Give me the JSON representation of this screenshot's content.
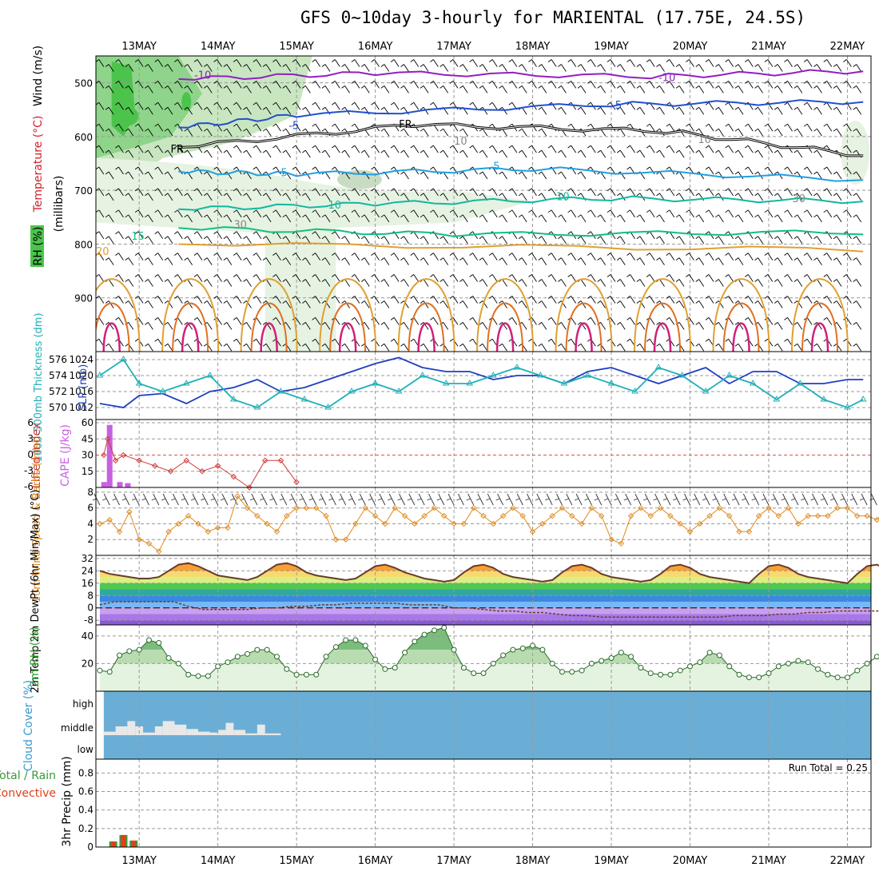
{
  "title": "GFS 0~10day 3-hourly for MARIENTAL (17.75E, 24.5S)",
  "dates": [
    "13MAY",
    "14MAY",
    "15MAY",
    "16MAY",
    "17MAY",
    "18MAY",
    "19MAY",
    "20MAY",
    "21MAY",
    "22MAY"
  ],
  "colors": {
    "temp": "#d4202a",
    "wind_blue": "#1f4fbf",
    "rh_green": "#2aa02a",
    "thickness": "#20b0b8",
    "slp": "#1f3fc0",
    "cape": "#c860e0",
    "li": "#d23a3a",
    "wind10": "#e08a20",
    "cloud_bg": "#6aaed6",
    "precip_total": "#3a9a3a",
    "precip_conv": "#e0401a"
  },
  "chart_data": [
    {
      "type": "contour",
      "id": "upper-air",
      "ylabel_parts": [
        "RH (%)",
        "Temperature (°C)",
        "Wind (m/s)"
      ],
      "ylabel_units": "(millibars)",
      "y_ticks": [
        500,
        600,
        700,
        800,
        900
      ],
      "ylim": [
        1000,
        450
      ],
      "contours": [
        {
          "label": "-10",
          "values_at_days": [
            {
              "day": 13.5,
              "p": 493
            },
            {
              "day": 16.0,
              "p": 482
            },
            {
              "day": 19.5,
              "p": 488
            },
            {
              "day": 22.2,
              "p": 478
            }
          ]
        },
        {
          "label": "-5",
          "values_at_days": [
            {
              "day": 13.5,
              "p": 583
            },
            {
              "day": 15.0,
              "p": 560
            },
            {
              "day": 19.0,
              "p": 540
            },
            {
              "day": 22.2,
              "p": 535
            }
          ]
        },
        {
          "label": "FR",
          "values_at_days": [
            {
              "day": 13.5,
              "p": 620
            },
            {
              "day": 16.5,
              "p": 578
            },
            {
              "day": 19.7,
              "p": 590
            },
            {
              "day": 22.2,
              "p": 635
            }
          ]
        },
        {
          "label": "5",
          "values_at_days": [
            {
              "day": 13.5,
              "p": 665
            },
            {
              "day": 15.0,
              "p": 670
            },
            {
              "day": 18.0,
              "p": 660
            },
            {
              "day": 22.2,
              "p": 680
            }
          ]
        },
        {
          "label": "10",
          "values_at_days": [
            {
              "day": 13.5,
              "p": 735
            },
            {
              "day": 16.0,
              "p": 725
            },
            {
              "day": 19.0,
              "p": 715
            },
            {
              "day": 22.2,
              "p": 720
            }
          ]
        },
        {
          "label": "15",
          "values_at_days": [
            {
              "day": 13.5,
              "p": 770
            },
            {
              "day": 17.0,
              "p": 782
            },
            {
              "day": 22.2,
              "p": 778
            }
          ]
        },
        {
          "label": "20",
          "values_at_days": [
            {
              "day": 13.5,
              "p": 800
            },
            {
              "day": 22.2,
              "p": 810
            }
          ]
        }
      ],
      "contour_labels": [
        "-10",
        "-10",
        "-5",
        "-5",
        "FR",
        "FR",
        "5",
        "5",
        "10",
        "10",
        "15",
        "20",
        "30",
        "10",
        "10",
        "30"
      ]
    },
    {
      "type": "line",
      "id": "slp-thickness",
      "ylabel_left": "1000-500mb Thickness (dm)",
      "ylabel_right": "SLP (mb)",
      "left_ticks": [
        570,
        572,
        574,
        576
      ],
      "right_ticks": [
        1012,
        1016,
        1020,
        1024
      ],
      "series": [
        {
          "name": "SLP",
          "axis": "right",
          "x": [
            12.5,
            12.8,
            13.0,
            13.3,
            13.6,
            13.9,
            14.2,
            14.5,
            14.8,
            15.1,
            15.4,
            15.7,
            16.0,
            16.3,
            16.6,
            16.9,
            17.2,
            17.5,
            17.8,
            18.1,
            18.4,
            18.7,
            19.0,
            19.3,
            19.6,
            19.9,
            20.2,
            20.5,
            20.8,
            21.1,
            21.4,
            21.7,
            22.0,
            22.2
          ],
          "values": [
            1013,
            1012,
            1015,
            1015.5,
            1013,
            1016,
            1017,
            1019,
            1016,
            1017,
            1019,
            1021,
            1023,
            1024.5,
            1022,
            1021,
            1021,
            1019,
            1020,
            1020,
            1018,
            1021,
            1022,
            1020,
            1018,
            1020,
            1022,
            1018,
            1021,
            1021,
            1018,
            1018,
            1019,
            1019
          ]
        },
        {
          "name": "Thickness",
          "axis": "left",
          "x": [
            12.5,
            12.8,
            13.0,
            13.3,
            13.6,
            13.9,
            14.2,
            14.5,
            14.8,
            15.1,
            15.4,
            15.7,
            16.0,
            16.3,
            16.6,
            16.9,
            17.2,
            17.5,
            17.8,
            18.1,
            18.4,
            18.7,
            19.0,
            19.3,
            19.6,
            19.9,
            20.2,
            20.5,
            20.8,
            21.1,
            21.4,
            21.7,
            22.0,
            22.2
          ],
          "values": [
            574,
            576,
            573,
            572,
            573,
            574,
            571,
            570,
            572,
            571,
            570,
            572,
            573,
            572,
            574,
            573,
            573,
            574,
            575,
            574,
            573,
            574,
            573,
            572,
            575,
            574,
            572,
            574,
            573,
            571,
            573,
            571,
            570,
            571
          ]
        }
      ]
    },
    {
      "type": "bar-line",
      "id": "cape-li",
      "ylabel_left": "Lifted Index",
      "ylabel_right": "CAPE (J/kg)",
      "left_ticks": [
        "6",
        "3",
        "0",
        "-3",
        "-6"
      ],
      "right_ticks": [
        15,
        30,
        45,
        60
      ],
      "cape_bars": [
        {
          "day": 12.55,
          "value": 5
        },
        {
          "day": 12.62,
          "value": 58
        },
        {
          "day": 12.75,
          "value": 5
        },
        {
          "day": 12.85,
          "value": 4
        }
      ],
      "lifted_index": {
        "x": [
          12.55,
          12.6,
          12.7,
          12.8,
          13.0,
          13.2,
          13.4,
          13.6,
          13.8,
          14.0,
          14.2,
          14.4,
          14.6,
          14.8,
          15.0
        ],
        "values": [
          0,
          -3,
          1,
          0,
          1,
          2,
          3,
          1,
          3,
          2,
          4,
          6,
          1,
          1,
          5
        ]
      }
    },
    {
      "type": "line",
      "id": "wind10",
      "ylabel": "10m Wind Speed & Barbs (m/s)",
      "y_ticks": [
        2,
        4,
        6,
        8
      ],
      "ylim": [
        0,
        8.5
      ],
      "x_start": 12.5,
      "x_step": 0.125,
      "values": [
        4,
        4.5,
        3,
        5.5,
        2,
        1.5,
        0.5,
        3,
        4,
        5,
        4,
        3,
        3.5,
        3.5,
        7.5,
        6,
        5,
        4,
        3,
        5,
        6,
        6,
        6,
        5,
        2,
        2,
        4,
        6,
        5,
        4,
        6,
        5,
        4,
        5,
        6,
        5,
        4,
        4,
        6,
        5,
        4,
        5,
        6,
        5,
        3,
        4,
        5,
        6,
        5,
        4,
        6,
        5,
        2,
        1.5,
        5,
        6,
        5,
        6,
        5,
        4,
        3,
        4,
        5,
        6,
        5,
        3,
        3,
        5,
        6,
        5,
        6,
        4,
        5,
        5,
        5,
        6,
        6,
        5,
        5,
        4.5,
        6,
        4,
        5,
        5
      ]
    },
    {
      "type": "area",
      "id": "temp2m",
      "ylabel": "2m Temp 2m DewPt (6hr Min/Max) (°C)",
      "y_ticks": [
        -8,
        0,
        8,
        16,
        24,
        32
      ],
      "ylim": [
        -12,
        34
      ],
      "temperature": {
        "x_start": 12.5,
        "x_step": 0.125,
        "values": [
          24,
          22,
          21,
          20,
          19,
          19,
          20,
          24,
          28,
          29,
          27,
          24,
          21,
          20,
          19,
          18,
          20,
          24,
          28,
          29,
          27,
          23,
          21,
          20,
          19,
          18,
          19,
          23,
          27,
          28,
          26,
          23,
          21,
          19,
          18,
          17,
          18,
          23,
          27,
          28,
          26,
          22,
          20,
          19,
          18,
          17,
          18,
          23,
          27,
          28,
          26,
          22,
          20,
          19,
          18,
          17,
          18,
          22,
          27,
          28,
          26,
          22,
          20,
          19,
          18,
          17,
          16,
          22,
          27,
          28,
          26,
          22,
          20,
          19,
          18,
          17,
          16,
          22,
          27,
          28,
          25,
          21,
          19,
          18,
          17,
          16
        ]
      },
      "dewpoint": {
        "x_start": 12.5,
        "x_step": 0.125,
        "values": [
          2,
          4,
          4,
          4,
          4,
          4,
          1,
          -1,
          -1,
          -1,
          -1,
          0,
          0,
          1,
          1,
          2,
          2,
          3,
          3,
          3,
          3,
          2,
          2,
          2,
          0,
          0,
          -1,
          -2,
          -2,
          -3,
          -3,
          -4,
          -5,
          -5,
          -6,
          -6,
          -6,
          -6,
          -6,
          -6,
          -6,
          -6,
          -6,
          -5,
          -5,
          -5,
          -4,
          -4,
          -3,
          -3,
          -2,
          -2,
          -2,
          -2,
          -1,
          -1,
          -2,
          -2,
          -2,
          -3,
          -3,
          -3,
          -3,
          -3
        ]
      }
    },
    {
      "type": "area",
      "id": "rh2m",
      "ylabel": "2m RH (%)",
      "y_ticks": [
        20,
        40
      ],
      "ylim": [
        0,
        48
      ],
      "x_start": 12.5,
      "x_step": 0.125,
      "values": [
        15,
        14,
        26,
        29,
        30,
        37,
        35,
        24,
        20,
        12,
        11,
        11,
        18,
        21,
        25,
        27,
        30,
        30,
        25,
        16,
        12,
        12,
        12,
        25,
        32,
        37,
        37,
        33,
        23,
        16,
        17,
        28,
        36,
        41,
        44,
        46,
        30,
        17,
        13,
        13,
        20,
        26,
        30,
        31,
        33,
        30,
        20,
        14,
        14,
        15,
        20,
        22,
        24,
        28,
        25,
        17,
        13,
        12,
        12,
        15,
        18,
        21,
        28,
        26,
        18,
        12,
        10,
        10,
        13,
        18,
        20,
        22,
        21,
        16,
        12,
        10,
        10,
        15,
        20,
        25,
        31,
        31,
        20,
        14,
        13,
        19,
        25,
        29,
        29
      ]
    },
    {
      "type": "bar",
      "id": "cloud",
      "ylabel": "Cloud Cover (%)",
      "levels": [
        "high",
        "middle",
        "low"
      ],
      "middle_bars": [
        {
          "start": 12.55,
          "end": 12.7,
          "h": 0.2
        },
        {
          "start": 12.7,
          "end": 12.85,
          "h": 0.5
        },
        {
          "start": 12.85,
          "end": 12.95,
          "h": 0.8
        },
        {
          "start": 12.95,
          "end": 13.05,
          "h": 0.5
        },
        {
          "start": 13.05,
          "end": 13.2,
          "h": 0.15
        },
        {
          "start": 13.2,
          "end": 13.3,
          "h": 0.5
        },
        {
          "start": 13.3,
          "end": 13.45,
          "h": 0.8
        },
        {
          "start": 13.45,
          "end": 13.6,
          "h": 0.6
        },
        {
          "start": 13.6,
          "end": 13.75,
          "h": 0.35
        },
        {
          "start": 13.75,
          "end": 13.9,
          "h": 0.2
        },
        {
          "start": 13.9,
          "end": 14.0,
          "h": 0.15
        },
        {
          "start": 14.0,
          "end": 14.1,
          "h": 0.3
        },
        {
          "start": 14.1,
          "end": 14.2,
          "h": 0.7
        },
        {
          "start": 14.2,
          "end": 14.35,
          "h": 0.3
        },
        {
          "start": 14.35,
          "end": 14.5,
          "h": 0.1
        },
        {
          "start": 14.5,
          "end": 14.6,
          "h": 0.6
        },
        {
          "start": 14.6,
          "end": 14.8,
          "h": 0.1
        }
      ]
    },
    {
      "type": "bar",
      "id": "precip",
      "ylabel_parts": [
        "Total / Rain",
        "Convective"
      ],
      "ylabel_units": "3hr Precip (mm)",
      "run_total_label": "Run Total = 0.25",
      "y_ticks": [
        "0",
        "0.2",
        "0.4",
        "0.6",
        "0.8"
      ],
      "ylim": [
        0,
        0.95
      ],
      "bars": [
        {
          "day": 12.67,
          "total": 0.06,
          "conv": 0.06
        },
        {
          "day": 12.8,
          "total": 0.13,
          "conv": 0.13
        },
        {
          "day": 12.93,
          "total": 0.07,
          "conv": 0.07
        }
      ]
    }
  ]
}
